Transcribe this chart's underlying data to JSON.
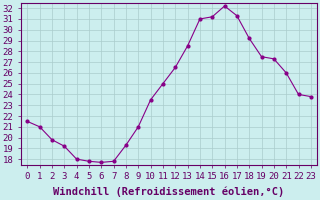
{
  "x": [
    0,
    1,
    2,
    3,
    4,
    5,
    6,
    7,
    8,
    9,
    10,
    11,
    12,
    13,
    14,
    15,
    16,
    17,
    18,
    19,
    20,
    21,
    22,
    23
  ],
  "y": [
    21.5,
    21.0,
    19.8,
    19.2,
    18.0,
    17.8,
    17.7,
    17.8,
    19.3,
    21.0,
    23.5,
    25.0,
    26.5,
    28.5,
    31.0,
    31.2,
    32.2,
    31.3,
    29.2,
    27.5,
    27.3,
    26.0,
    24.0,
    23.8
  ],
  "line_color": "#880088",
  "marker": ".",
  "marker_size": 4,
  "bg_color": "#cceeee",
  "grid_color": "#aacccc",
  "xlabel": "Windchill (Refroidissement éolien,°C)",
  "ylabel": "",
  "title": "",
  "xlim": [
    -0.5,
    23.5
  ],
  "ylim": [
    17.5,
    32.5
  ],
  "xtick_labels": [
    "0",
    "1",
    "2",
    "3",
    "4",
    "5",
    "6",
    "7",
    "8",
    "9",
    "10",
    "11",
    "12",
    "13",
    "14",
    "15",
    "16",
    "17",
    "18",
    "19",
    "20",
    "21",
    "22",
    "23"
  ],
  "ytick_values": [
    18,
    19,
    20,
    21,
    22,
    23,
    24,
    25,
    26,
    27,
    28,
    29,
    30,
    31,
    32
  ],
  "font_color": "#660066",
  "tick_font_size": 6.5,
  "xlabel_font_size": 7.5
}
